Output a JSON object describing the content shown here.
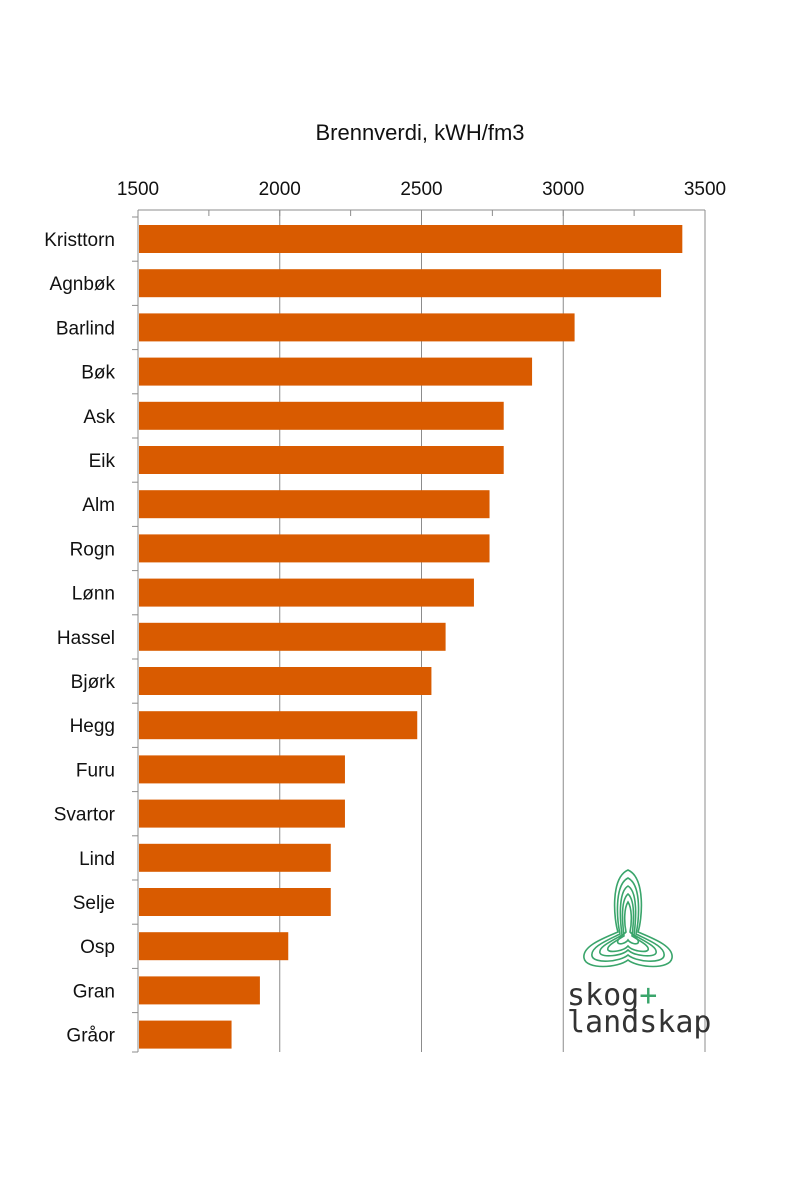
{
  "chart_data": {
    "type": "bar",
    "orientation": "horizontal",
    "title": "Brennverdi, kWH/fm3",
    "xlim": [
      1500,
      3500
    ],
    "xticks": [
      "1500",
      "2000",
      "2500",
      "3000",
      "3500"
    ],
    "grid": true,
    "categories": [
      "Kristtorn",
      "Agnbøk",
      "Barlind",
      "Bøk",
      "Ask",
      "Eik",
      "Alm",
      "Rogn",
      "Lønn",
      "Hassel",
      "Bjørk",
      "Hegg",
      "Furu",
      "Svartor",
      "Lind",
      "Selje",
      "Osp",
      "Gran",
      "Gråor"
    ],
    "values": [
      3420,
      3345,
      3040,
      2890,
      2790,
      2790,
      2740,
      2740,
      2685,
      2585,
      2535,
      2485,
      2230,
      2230,
      2180,
      2180,
      2030,
      1930,
      1830
    ],
    "bar_color": "#D95B00"
  },
  "logo": {
    "line1": "skog",
    "plus": "+",
    "line2": "landskap",
    "text_color": "#333333",
    "accent_color": "#3aa56b"
  }
}
